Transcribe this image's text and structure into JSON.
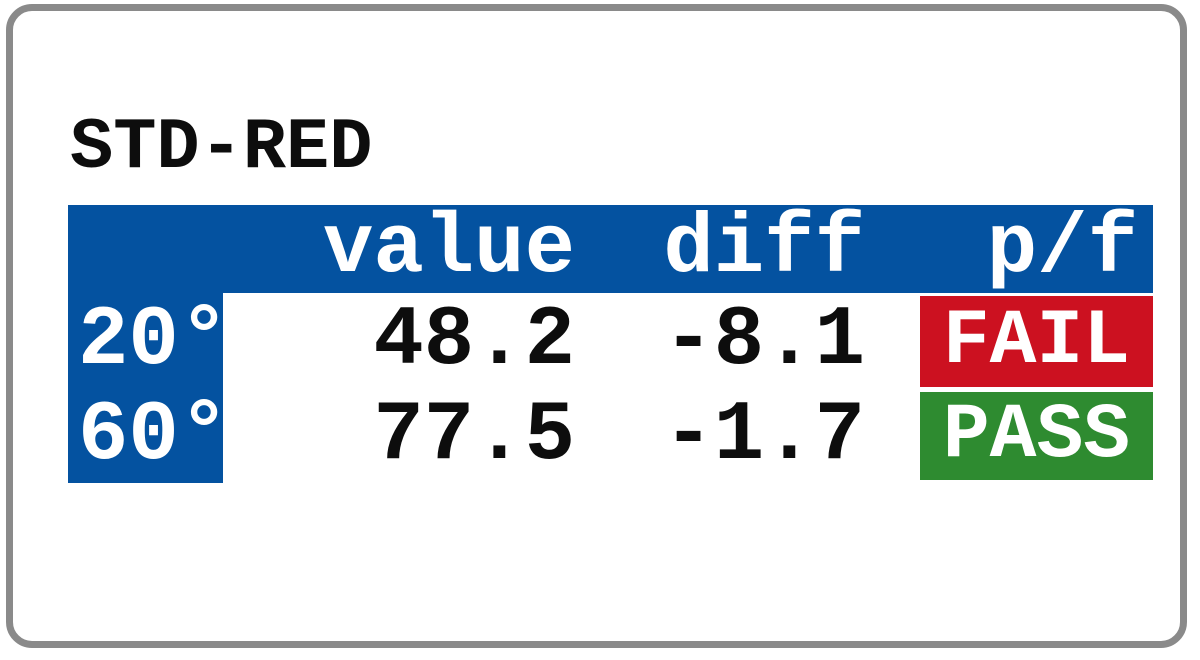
{
  "screen": {
    "title": "STD-RED",
    "table": {
      "headers": {
        "value": "value",
        "diff": "diff",
        "pf": "p/f"
      },
      "rows": [
        {
          "angle": "20°",
          "value": "48.2",
          "diff": "-8.1",
          "status_label": "FAIL",
          "status": "fail"
        },
        {
          "angle": "60°",
          "value": "77.5",
          "diff": "-1.7",
          "status_label": "PASS",
          "status": "pass"
        }
      ]
    },
    "colors": {
      "header_blue": "#0452a0",
      "fail_red": "#cc1120",
      "pass_green": "#2e8b30",
      "frame_gray": "#8a8a8a"
    }
  }
}
